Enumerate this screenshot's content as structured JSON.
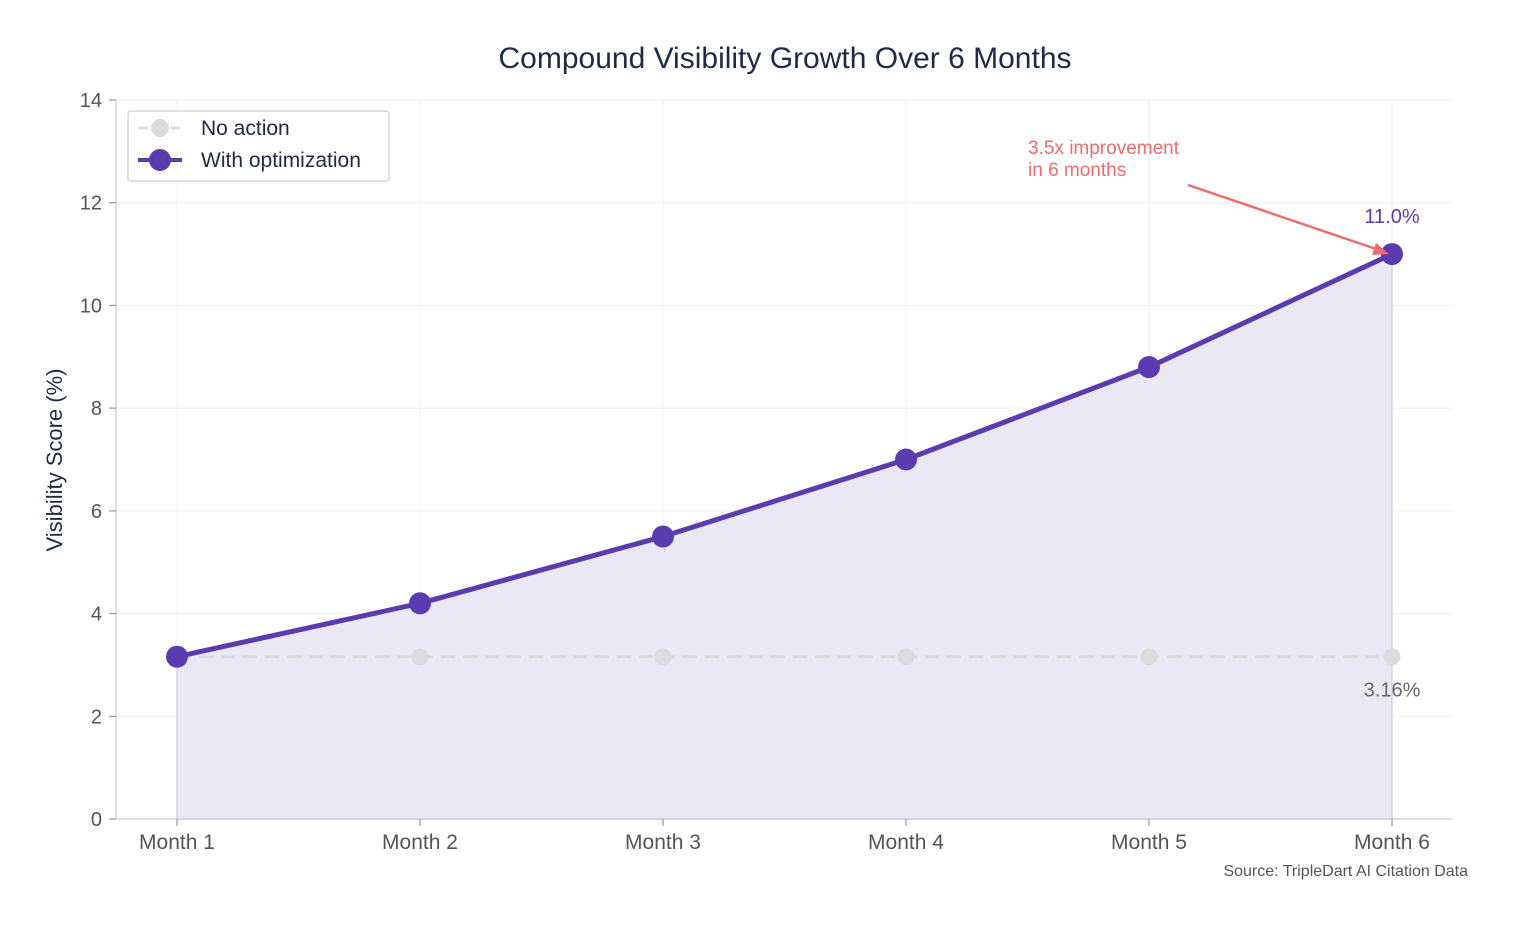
{
  "chart_data": {
    "type": "line",
    "title": "Compound Visibility Growth Over 6 Months",
    "xlabel": "",
    "ylabel": "Visibility Score (%)",
    "categories": [
      "Month 1",
      "Month 2",
      "Month 3",
      "Month 4",
      "Month 5",
      "Month 6"
    ],
    "ylim": [
      0,
      14
    ],
    "yticks": [
      0,
      2,
      4,
      6,
      8,
      10,
      12,
      14
    ],
    "grid": true,
    "legend_position": "top-left",
    "series": [
      {
        "name": "No action",
        "values": [
          3.16,
          3.16,
          3.16,
          3.16,
          3.16,
          3.16
        ],
        "color": "#dcdcdc",
        "style": "dashed"
      },
      {
        "name": "With optimization",
        "values": [
          3.16,
          4.2,
          5.5,
          7.0,
          8.8,
          11.0
        ],
        "color": "#5a3bb0",
        "style": "solid",
        "fill": "#ebe8f5"
      }
    ],
    "data_labels": {
      "end_optimized": "11.0%",
      "end_no_action": "3.16%"
    },
    "annotation": {
      "line1": "3.5x improvement",
      "line2": "in 6 months",
      "color": "#f06b6b"
    },
    "source": "Source: TripleDart AI Citation Data"
  }
}
